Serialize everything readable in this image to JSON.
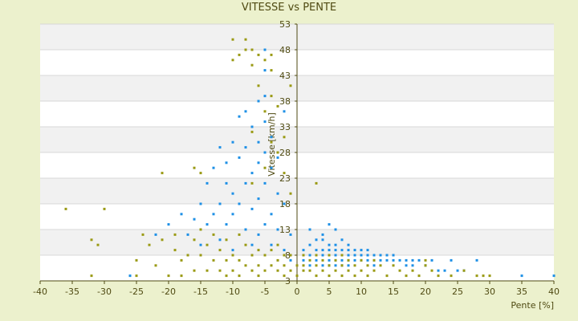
{
  "chart_data": {
    "type": "scatter",
    "title": "VITESSE vs PENTE",
    "xlabel": "Pente [%]",
    "ylabel": "Vitesse [km/h]",
    "xlim": [
      -40,
      40
    ],
    "ylim": [
      3,
      53
    ],
    "x_ticks": [
      -40,
      -35,
      -30,
      -25,
      -20,
      -15,
      -10,
      -5,
      0,
      5,
      10,
      15,
      20,
      25,
      30,
      35,
      40
    ],
    "y_ticks": [
      3,
      8,
      13,
      18,
      23,
      28,
      33,
      38,
      43,
      48,
      53
    ],
    "grid": "horizontal bands",
    "legend": "none",
    "series": [
      {
        "color": "#1e90e6",
        "points": [
          [
            -26,
            4
          ],
          [
            -22,
            12
          ],
          [
            -20,
            14
          ],
          [
            -18,
            16
          ],
          [
            -17,
            12
          ],
          [
            -16,
            15
          ],
          [
            -15,
            18
          ],
          [
            -15,
            10
          ],
          [
            -14,
            22
          ],
          [
            -14,
            14
          ],
          [
            -13,
            16
          ],
          [
            -13,
            25
          ],
          [
            -12,
            18
          ],
          [
            -12,
            29
          ],
          [
            -12,
            11
          ],
          [
            -11,
            22
          ],
          [
            -11,
            26
          ],
          [
            -11,
            14
          ],
          [
            -10,
            30
          ],
          [
            -10,
            20
          ],
          [
            -10,
            16
          ],
          [
            -10,
            9
          ],
          [
            -9,
            27
          ],
          [
            -9,
            35
          ],
          [
            -9,
            18
          ],
          [
            -8,
            29
          ],
          [
            -8,
            22
          ],
          [
            -8,
            13
          ],
          [
            -8,
            36
          ],
          [
            -7,
            33
          ],
          [
            -7,
            24
          ],
          [
            -7,
            17
          ],
          [
            -7,
            10
          ],
          [
            -6,
            30
          ],
          [
            -6,
            38
          ],
          [
            -6,
            26
          ],
          [
            -6,
            19
          ],
          [
            -6,
            12
          ],
          [
            -5,
            48
          ],
          [
            -5,
            44
          ],
          [
            -5,
            39
          ],
          [
            -5,
            34
          ],
          [
            -5,
            28
          ],
          [
            -5,
            22
          ],
          [
            -5,
            14
          ],
          [
            -4,
            31
          ],
          [
            -4,
            25
          ],
          [
            -4,
            16
          ],
          [
            -4,
            10
          ],
          [
            -3,
            27
          ],
          [
            -3,
            20
          ],
          [
            -3,
            13
          ],
          [
            -2,
            36
          ],
          [
            -2,
            18
          ],
          [
            -2,
            9
          ],
          [
            -1,
            12
          ],
          [
            -1,
            7
          ],
          [
            1,
            9
          ],
          [
            1,
            7
          ],
          [
            2,
            10
          ],
          [
            2,
            8
          ],
          [
            2,
            6
          ],
          [
            3,
            9
          ],
          [
            3,
            7
          ],
          [
            4,
            11
          ],
          [
            4,
            9
          ],
          [
            4,
            8
          ],
          [
            4,
            6
          ],
          [
            5,
            10
          ],
          [
            5,
            9
          ],
          [
            5,
            8
          ],
          [
            5,
            7
          ],
          [
            5,
            6
          ],
          [
            6,
            10
          ],
          [
            6,
            9
          ],
          [
            6,
            8
          ],
          [
            6,
            7
          ],
          [
            6,
            6
          ],
          [
            7,
            9
          ],
          [
            7,
            8
          ],
          [
            7,
            7
          ],
          [
            7,
            6
          ],
          [
            8,
            10
          ],
          [
            8,
            9
          ],
          [
            8,
            8
          ],
          [
            8,
            7
          ],
          [
            8,
            6
          ],
          [
            9,
            9
          ],
          [
            9,
            8
          ],
          [
            9,
            7
          ],
          [
            10,
            9
          ],
          [
            10,
            8
          ],
          [
            10,
            7
          ],
          [
            11,
            9
          ],
          [
            11,
            8
          ],
          [
            11,
            7
          ],
          [
            12,
            8
          ],
          [
            12,
            7
          ],
          [
            12,
            6
          ],
          [
            13,
            8
          ],
          [
            13,
            7
          ],
          [
            14,
            8
          ],
          [
            14,
            7
          ],
          [
            15,
            8
          ],
          [
            15,
            7
          ],
          [
            16,
            7
          ],
          [
            17,
            7
          ],
          [
            17,
            6
          ],
          [
            18,
            7
          ],
          [
            18,
            6
          ],
          [
            19,
            7
          ],
          [
            20,
            6
          ],
          [
            21,
            7
          ],
          [
            22,
            5
          ],
          [
            23,
            5
          ],
          [
            24,
            7
          ],
          [
            25,
            5
          ],
          [
            26,
            5
          ],
          [
            28,
            7
          ],
          [
            35,
            4
          ],
          [
            40,
            4
          ],
          [
            2,
            13
          ],
          [
            4,
            12
          ],
          [
            5,
            14
          ],
          [
            6,
            13
          ],
          [
            3,
            11
          ],
          [
            7,
            11
          ]
        ]
      },
      {
        "color": "#9a9a14",
        "points": [
          [
            -36,
            17
          ],
          [
            -32,
            4
          ],
          [
            -32,
            11
          ],
          [
            -31,
            10
          ],
          [
            -30,
            17
          ],
          [
            -25,
            7
          ],
          [
            -25,
            4
          ],
          [
            -24,
            12
          ],
          [
            -23,
            10
          ],
          [
            -22,
            6
          ],
          [
            -21,
            24
          ],
          [
            -21,
            11
          ],
          [
            -20,
            4
          ],
          [
            -19,
            12
          ],
          [
            -19,
            9
          ],
          [
            -18,
            7
          ],
          [
            -18,
            4
          ],
          [
            -17,
            8
          ],
          [
            -16,
            25
          ],
          [
            -16,
            11
          ],
          [
            -16,
            5
          ],
          [
            -15,
            24
          ],
          [
            -15,
            13
          ],
          [
            -15,
            8
          ],
          [
            -14,
            10
          ],
          [
            -14,
            5
          ],
          [
            -13,
            12
          ],
          [
            -13,
            7
          ],
          [
            -12,
            9
          ],
          [
            -12,
            5
          ],
          [
            -11,
            11
          ],
          [
            -11,
            7
          ],
          [
            -11,
            4
          ],
          [
            -10,
            50
          ],
          [
            -10,
            46
          ],
          [
            -10,
            8
          ],
          [
            -10,
            5
          ],
          [
            -9,
            47
          ],
          [
            -9,
            12
          ],
          [
            -9,
            7
          ],
          [
            -9,
            4
          ],
          [
            -8,
            50
          ],
          [
            -8,
            48
          ],
          [
            -8,
            10
          ],
          [
            -8,
            6
          ],
          [
            -7,
            48
          ],
          [
            -7,
            45
          ],
          [
            -7,
            32
          ],
          [
            -7,
            22
          ],
          [
            -7,
            8
          ],
          [
            -7,
            5
          ],
          [
            -6,
            47
          ],
          [
            -6,
            41
          ],
          [
            -6,
            9
          ],
          [
            -6,
            6
          ],
          [
            -6,
            4
          ],
          [
            -5,
            46
          ],
          [
            -5,
            36
          ],
          [
            -5,
            25
          ],
          [
            -5,
            8
          ],
          [
            -5,
            5
          ],
          [
            -4,
            47
          ],
          [
            -4,
            44
          ],
          [
            -4,
            39
          ],
          [
            -4,
            30
          ],
          [
            -4,
            9
          ],
          [
            -4,
            6
          ],
          [
            -3,
            37
          ],
          [
            -3,
            28
          ],
          [
            -3,
            10
          ],
          [
            -3,
            7
          ],
          [
            -3,
            5
          ],
          [
            -2,
            31
          ],
          [
            -2,
            24
          ],
          [
            -2,
            8
          ],
          [
            -2,
            6
          ],
          [
            -2,
            4
          ],
          [
            -1,
            41
          ],
          [
            -1,
            20
          ],
          [
            -1,
            8
          ],
          [
            -1,
            5
          ],
          [
            0,
            6
          ],
          [
            0,
            4
          ],
          [
            1,
            8
          ],
          [
            1,
            6
          ],
          [
            1,
            5
          ],
          [
            2,
            7
          ],
          [
            2,
            5
          ],
          [
            3,
            22
          ],
          [
            3,
            8
          ],
          [
            3,
            6
          ],
          [
            3,
            4
          ],
          [
            4,
            7
          ],
          [
            4,
            5
          ],
          [
            5,
            8
          ],
          [
            5,
            6
          ],
          [
            5,
            4
          ],
          [
            6,
            7
          ],
          [
            6,
            5
          ],
          [
            7,
            8
          ],
          [
            7,
            6
          ],
          [
            7,
            4
          ],
          [
            8,
            7
          ],
          [
            8,
            5
          ],
          [
            9,
            6
          ],
          [
            9,
            4
          ],
          [
            10,
            7
          ],
          [
            10,
            5
          ],
          [
            11,
            6
          ],
          [
            11,
            4
          ],
          [
            12,
            7
          ],
          [
            12,
            5
          ],
          [
            13,
            6
          ],
          [
            14,
            4
          ],
          [
            15,
            6
          ],
          [
            16,
            5
          ],
          [
            17,
            4
          ],
          [
            18,
            5
          ],
          [
            19,
            4
          ],
          [
            20,
            6
          ],
          [
            20,
            7
          ],
          [
            21,
            5
          ],
          [
            22,
            4
          ],
          [
            24,
            4
          ],
          [
            26,
            5
          ],
          [
            28,
            4
          ],
          [
            29,
            4
          ],
          [
            30,
            4
          ]
        ]
      }
    ]
  }
}
